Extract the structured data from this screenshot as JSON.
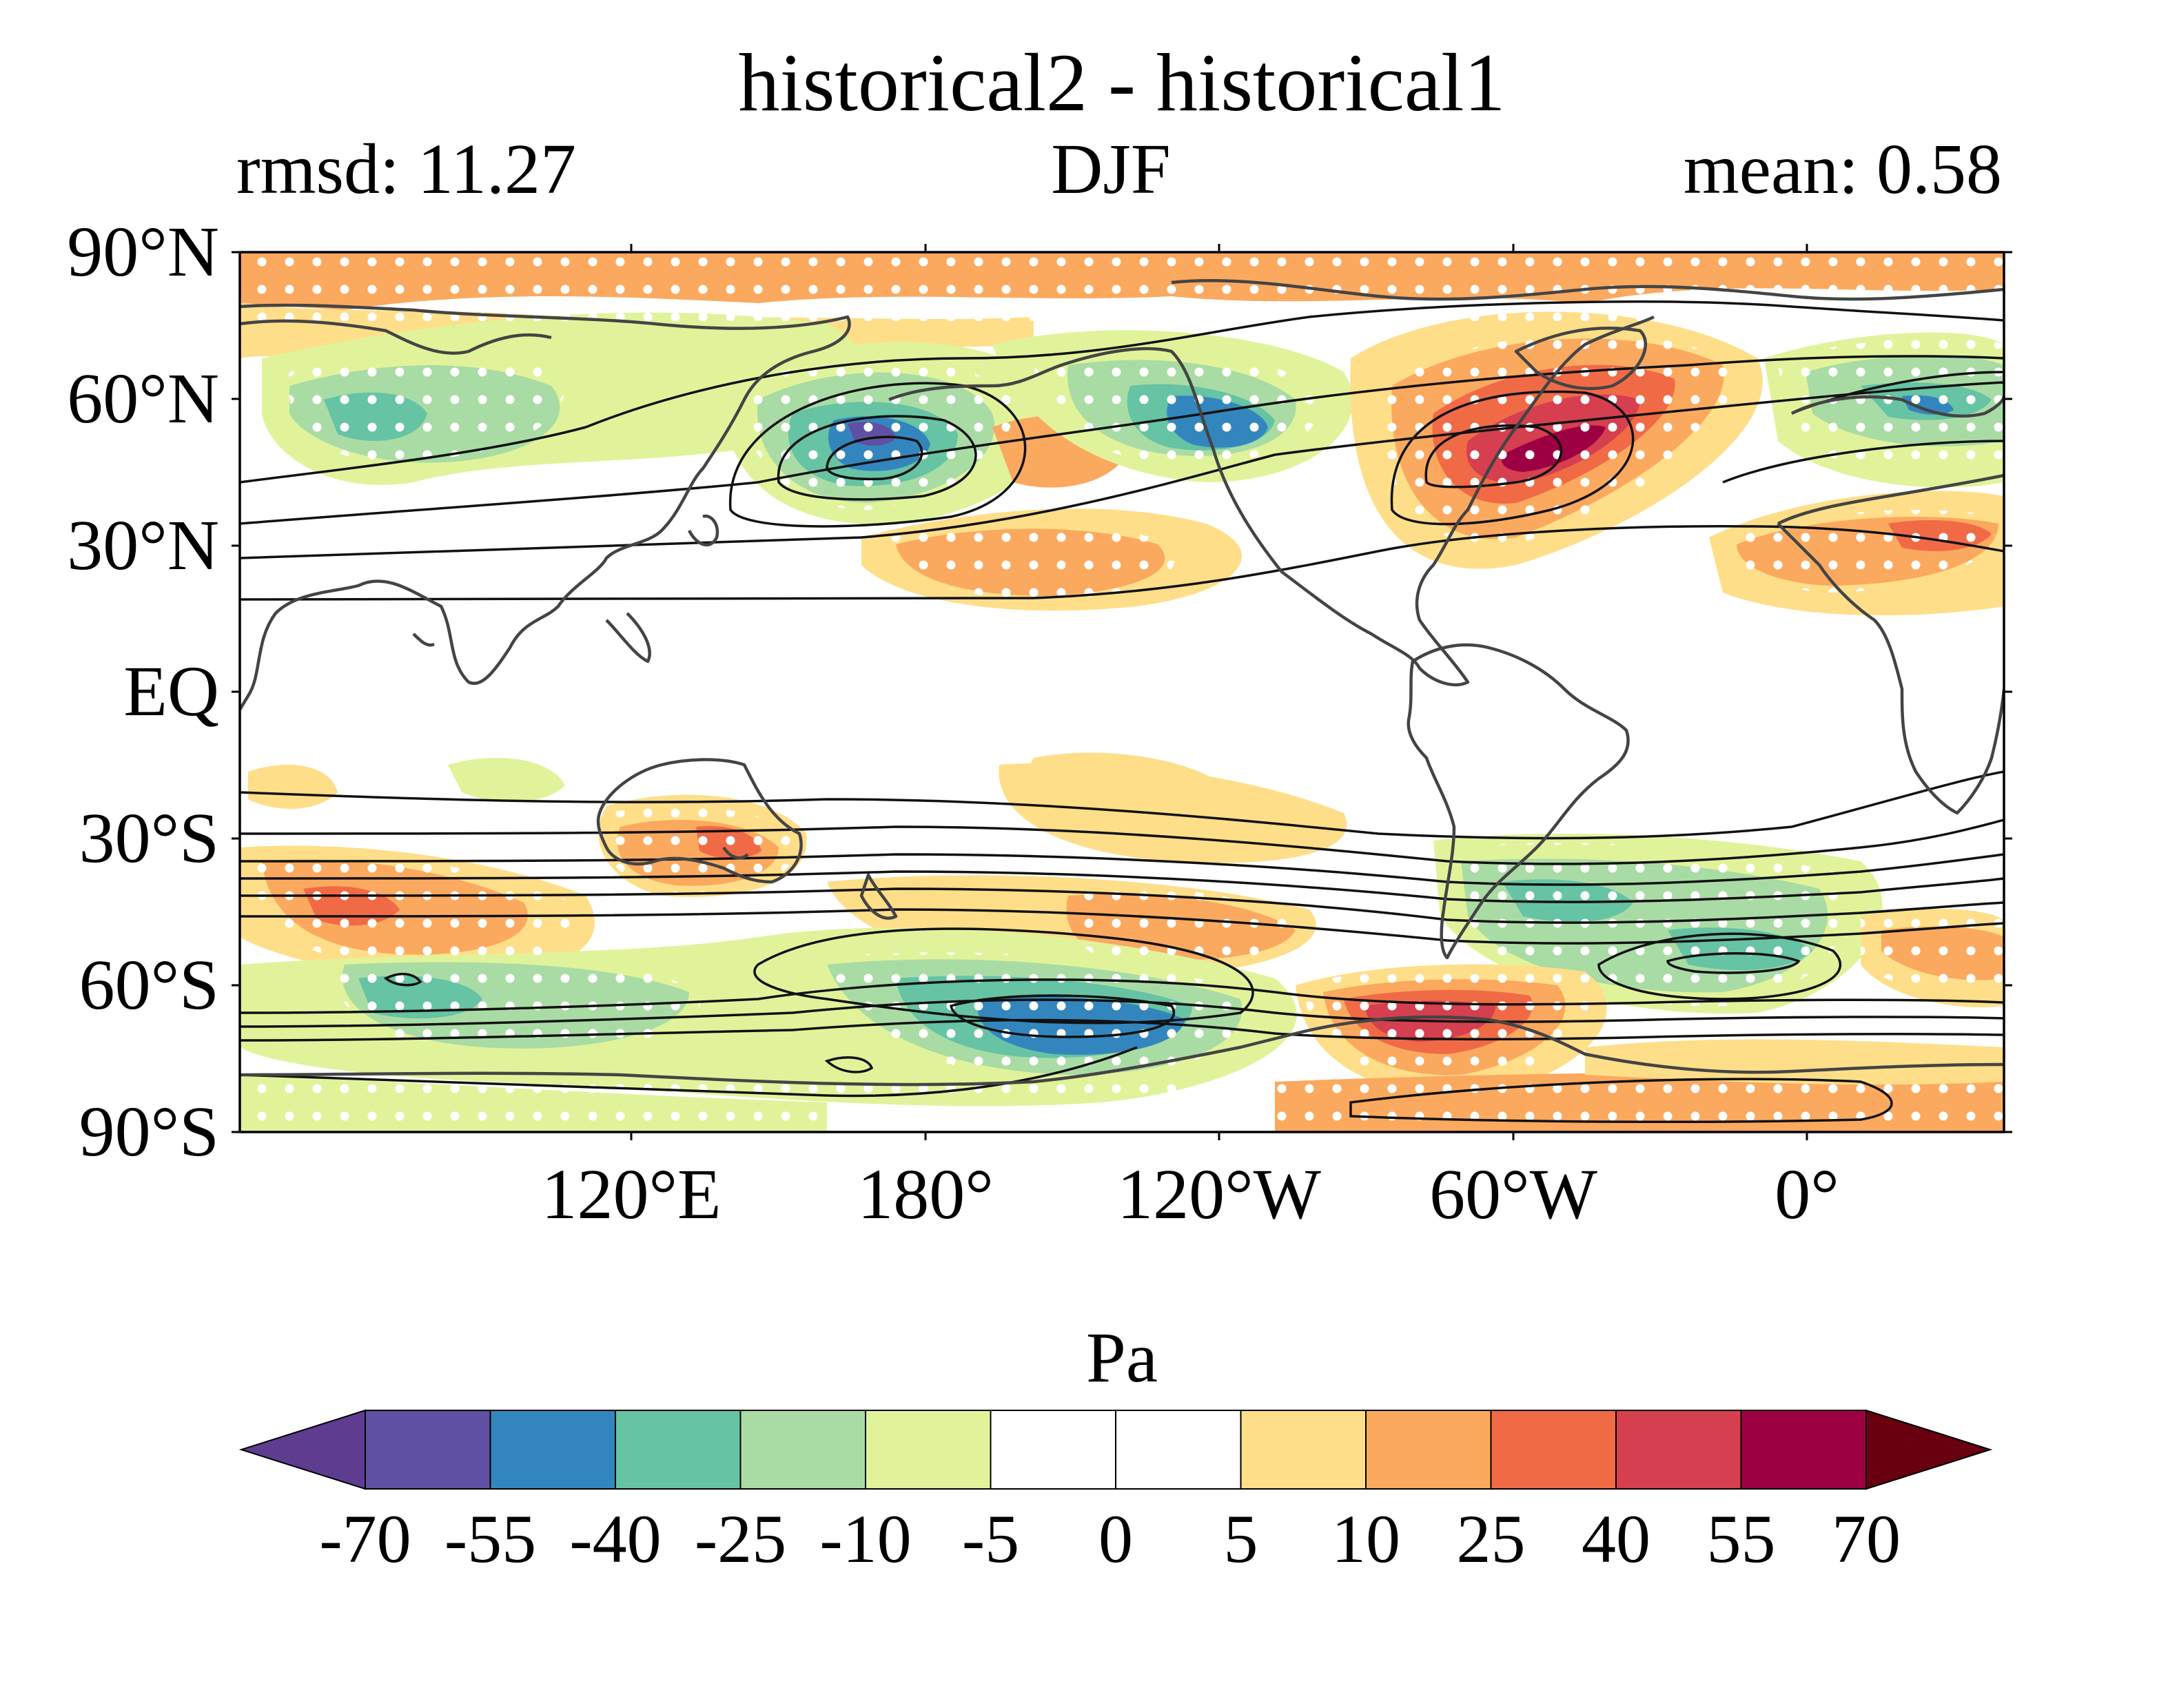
{
  "figure": {
    "title": "historical2 - historical1",
    "left_title": "rmsd: 11.27",
    "center_title": "DJF",
    "right_title": "mean: 0.58"
  },
  "map": {
    "projection": "cylindrical equidistant (plate carree), centered on the Pacific",
    "lat_tick_labels": [
      "90°N",
      "60°N",
      "30°N",
      "EQ",
      "30°S",
      "60°S",
      "90°S"
    ],
    "lon_tick_labels": [
      "120°E",
      "180°",
      "120°W",
      "60°W",
      "0°"
    ],
    "features": [
      "coastlines",
      "filled difference contours",
      "black line contours of the reference field",
      "white dot stippling"
    ]
  },
  "colorbar": {
    "label": "Pa",
    "tick_labels": [
      "-70",
      "-55",
      "-40",
      "-25",
      "-10",
      "-5",
      "0",
      "5",
      "10",
      "25",
      "40",
      "55",
      "70"
    ],
    "levels": [
      -70,
      -55,
      -40,
      -25,
      -10,
      -5,
      0,
      5,
      10,
      25,
      40,
      55,
      70
    ],
    "colors": [
      "#5e3c8f",
      "#6050a4",
      "#3386bd",
      "#66c3a4",
      "#a9dca4",
      "#e1f39a",
      "#ffffff",
      "#ffffff",
      "#fede89",
      "#fba95f",
      "#f06b45",
      "#d53f4f",
      "#9c0042",
      "#680010"
    ],
    "extend": "both"
  }
}
